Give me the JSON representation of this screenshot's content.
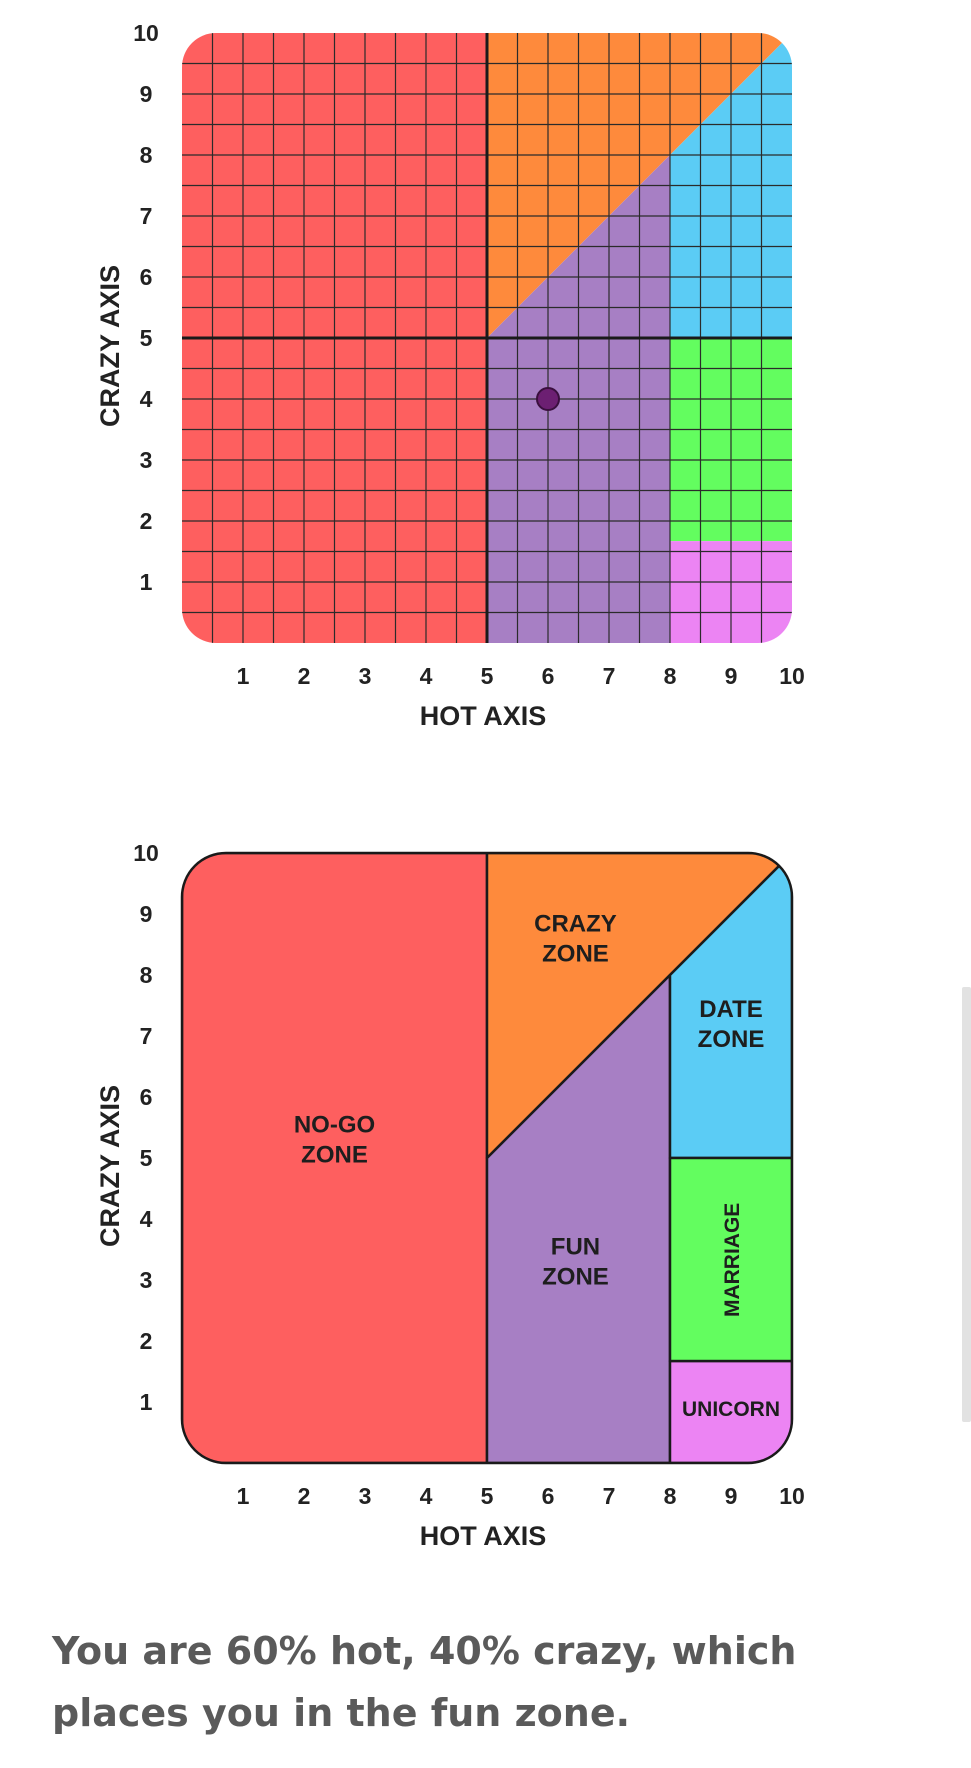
{
  "result_text": "You are 60% hot, 40% crazy, which places you in the fun zone.",
  "colors": {
    "no_go": "#fe5f5f",
    "crazy": "#fe8a3c",
    "fun": "#a77fc4",
    "date": "#5bccf5",
    "marriage": "#63fd5f",
    "unicorn": "#ec84f3",
    "marker": "#6c1f72",
    "axis_text": "#222222"
  },
  "chart_data": [
    {
      "type": "scatter",
      "xlabel": "HOT AXIS",
      "ylabel": "CRAZY AXIS",
      "xlim": [
        0,
        10
      ],
      "ylim": [
        0,
        10
      ],
      "x_ticks": [
        "1",
        "2",
        "3",
        "4",
        "5",
        "6",
        "7",
        "8",
        "9",
        "10"
      ],
      "y_ticks": [
        "1",
        "2",
        "3",
        "4",
        "5",
        "6",
        "7",
        "8",
        "9",
        "10"
      ],
      "grid": true,
      "grid_step": 0.5,
      "divider_lines": {
        "x": 5,
        "y": 5
      },
      "points": [
        {
          "x": 6,
          "y": 4
        }
      ]
    },
    {
      "type": "area",
      "xlabel": "HOT AXIS",
      "ylabel": "CRAZY AXIS",
      "xlim": [
        0,
        10
      ],
      "ylim": [
        0,
        10
      ],
      "x_ticks": [
        "1",
        "2",
        "3",
        "4",
        "5",
        "6",
        "7",
        "8",
        "9",
        "10"
      ],
      "y_ticks": [
        "1",
        "2",
        "3",
        "4",
        "5",
        "6",
        "7",
        "8",
        "9",
        "10"
      ],
      "grid": false,
      "zones": [
        {
          "id": "no_go",
          "labels": [
            "NO-GO",
            "ZONE"
          ],
          "polygon": [
            [
              0,
              0
            ],
            [
              5,
              0
            ],
            [
              5,
              10
            ],
            [
              0,
              10
            ]
          ],
          "label_at": [
            2.5,
            5.3
          ]
        },
        {
          "id": "crazy",
          "labels": [
            "CRAZY",
            "ZONE"
          ],
          "polygon": [
            [
              5,
              5
            ],
            [
              5,
              10
            ],
            [
              10,
              10
            ]
          ],
          "label_at": [
            6.45,
            8.6
          ]
        },
        {
          "id": "fun",
          "labels": [
            "FUN",
            "ZONE"
          ],
          "polygon": [
            [
              5,
              0
            ],
            [
              8,
              0
            ],
            [
              8,
              8
            ],
            [
              5,
              5
            ]
          ],
          "label_at": [
            6.45,
            3.3
          ]
        },
        {
          "id": "date",
          "labels": [
            "DATE",
            "ZONE"
          ],
          "polygon": [
            [
              8,
              5
            ],
            [
              10,
              5
            ],
            [
              10,
              10
            ],
            [
              8,
              8
            ]
          ],
          "label_at": [
            9.0,
            7.2
          ]
        },
        {
          "id": "marriage",
          "labels": [
            "MARRIAGE"
          ],
          "polygon": [
            [
              8,
              1.67
            ],
            [
              10,
              1.67
            ],
            [
              10,
              5
            ],
            [
              8,
              5
            ]
          ],
          "label_at": [
            9.0,
            3.33
          ],
          "vertical": true
        },
        {
          "id": "unicorn",
          "labels": [
            "UNICORN"
          ],
          "polygon": [
            [
              8,
              0
            ],
            [
              10,
              0
            ],
            [
              10,
              1.67
            ],
            [
              8,
              1.67
            ]
          ],
          "label_at": [
            9.0,
            0.9
          ]
        }
      ]
    }
  ]
}
